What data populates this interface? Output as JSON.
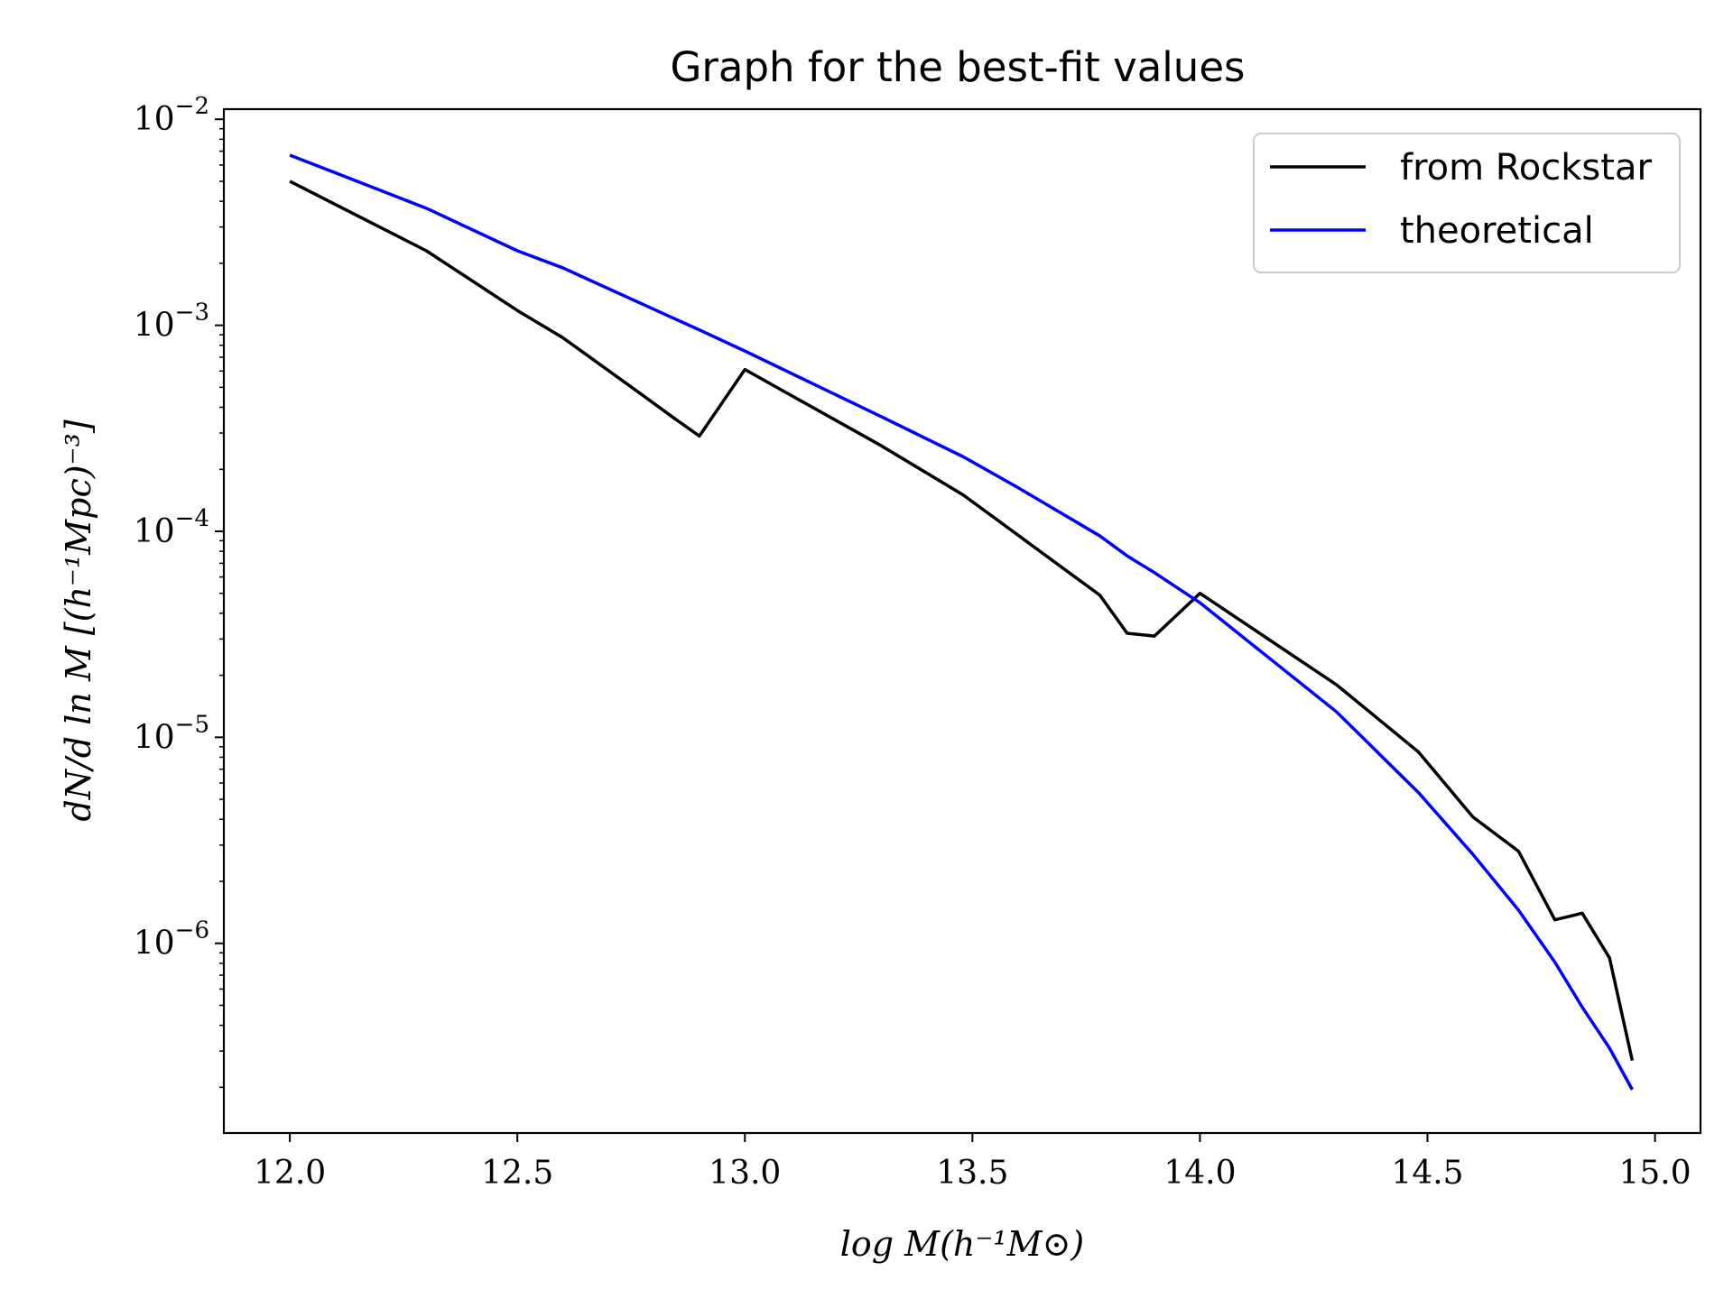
{
  "chart_data": {
    "type": "line",
    "title": "Graph for the best-fit values",
    "xlabel": "log M(h⁻¹M⊙)",
    "ylabel": "dN/d ln M [(h⁻¹Mpc)⁻³]",
    "xlim": [
      11.855,
      15.1
    ],
    "ylim": [
      1.2e-07,
      0.0112
    ],
    "yscale": "log",
    "grid": false,
    "legend_position": "top-right",
    "x_ticks": [
      {
        "value": 12.0,
        "label": "12.0"
      },
      {
        "value": 12.5,
        "label": "12.5"
      },
      {
        "value": 13.0,
        "label": "13.0"
      },
      {
        "value": 13.5,
        "label": "13.5"
      },
      {
        "value": 14.0,
        "label": "14.0"
      },
      {
        "value": 14.5,
        "label": "14.5"
      },
      {
        "value": 15.0,
        "label": "15.0"
      }
    ],
    "y_ticks": [
      {
        "value": 0.01,
        "base": "10",
        "exp": "−2"
      },
      {
        "value": 0.001,
        "base": "10",
        "exp": "−3"
      },
      {
        "value": 0.0001,
        "base": "10",
        "exp": "−4"
      },
      {
        "value": 1e-05,
        "base": "10",
        "exp": "−5"
      },
      {
        "value": 1e-06,
        "base": "10",
        "exp": "−6"
      }
    ],
    "series": [
      {
        "name": "from Rockstar",
        "color": "#000000",
        "x": [
          12.0,
          12.3,
          12.5,
          12.6,
          12.78,
          12.84,
          12.9,
          13.0,
          13.3,
          13.48,
          13.7,
          13.78,
          13.84,
          13.9,
          14.0,
          14.3,
          14.48,
          14.6,
          14.7,
          14.78,
          14.84,
          14.9,
          14.95
        ],
        "y": [
          0.005,
          0.0023,
          0.00118,
          0.00087,
          0.00045,
          0.00036,
          0.00029,
          0.00061,
          0.00026,
          0.00015,
          6.6e-05,
          4.9e-05,
          3.2e-05,
          3.1e-05,
          5e-05,
          1.8e-05,
          8.5e-06,
          4.1e-06,
          2.8e-06,
          1.3e-06,
          1.4e-06,
          8.5e-07,
          2.7e-07
        ]
      },
      {
        "name": "theoretical",
        "color": "#0000ff",
        "x": [
          12.0,
          12.3,
          12.5,
          12.6,
          12.84,
          12.9,
          13.0,
          13.3,
          13.48,
          13.6,
          13.78,
          13.84,
          13.9,
          14.0,
          14.3,
          14.48,
          14.6,
          14.7,
          14.78,
          14.84,
          14.9,
          14.95
        ],
        "y": [
          0.0067,
          0.0037,
          0.0023,
          0.0019,
          0.00109,
          0.00095,
          0.00075,
          0.00036,
          0.00023,
          0.000163,
          9.5e-05,
          7.6e-05,
          6.3e-05,
          4.5e-05,
          1.33e-05,
          5.4e-06,
          2.7e-06,
          1.45e-06,
          8.1e-07,
          4.9e-07,
          3.1e-07,
          1.95e-07
        ]
      }
    ]
  }
}
